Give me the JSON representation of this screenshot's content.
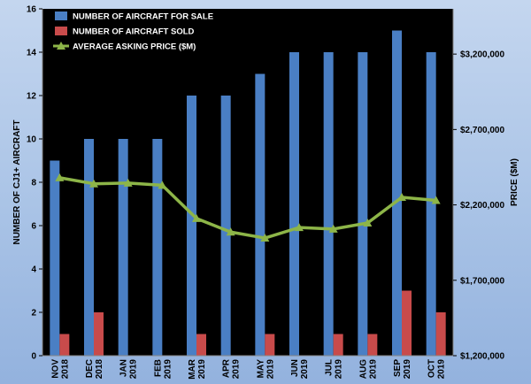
{
  "chart_data": {
    "type": "bar",
    "categories": [
      [
        "NOV",
        "2018"
      ],
      [
        "DEC",
        "2018"
      ],
      [
        "JAN",
        "2019"
      ],
      [
        "FEB",
        "2019"
      ],
      [
        "MAR",
        "2019"
      ],
      [
        "APR",
        "2019"
      ],
      [
        "MAY",
        "2019"
      ],
      [
        "JUN",
        "2019"
      ],
      [
        "JUL",
        "2019"
      ],
      [
        "AUG",
        "2019"
      ],
      [
        "SEP",
        "2019"
      ],
      [
        "OCT",
        "2019"
      ]
    ],
    "series": [
      {
        "name": "NUMBER OF AIRCRAFT FOR SALE",
        "type": "bar",
        "axis": "left",
        "color": "#4a7fc4",
        "values": [
          9,
          10,
          10,
          10,
          12,
          12,
          13,
          14,
          14,
          14,
          15,
          14
        ]
      },
      {
        "name": "NUMBER OF AIRCRAFT SOLD",
        "type": "bar",
        "axis": "left",
        "color": "#c84b4b",
        "values": [
          1,
          2,
          0,
          0,
          1,
          0,
          1,
          0,
          1,
          1,
          3,
          2
        ]
      },
      {
        "name": "AVERAGE ASKING PRICE ($M)",
        "type": "line",
        "axis": "right",
        "color": "#8db548",
        "values": [
          2380000,
          2340000,
          2345000,
          2330000,
          2110000,
          2020000,
          1980000,
          2050000,
          2040000,
          2080000,
          2250000,
          2230000
        ]
      }
    ],
    "ylabel": "NUMBER OF CJ1+ AIRCRAFT",
    "ylabel_right": "PRICE ($M)",
    "ylim": [
      0,
      16
    ],
    "yticks": [
      0,
      2,
      4,
      6,
      8,
      10,
      12,
      14,
      16
    ],
    "ylim_right": [
      1200000,
      3500000
    ],
    "yticks_right": [
      1200000,
      1700000,
      2200000,
      2700000,
      3200000
    ],
    "yticks_right_labels": [
      "$1,200,000",
      "$1,700,000",
      "$2,200,000",
      "$2,700,000",
      "$3,200,000"
    ],
    "legend_position": "top-left",
    "grid": false
  }
}
